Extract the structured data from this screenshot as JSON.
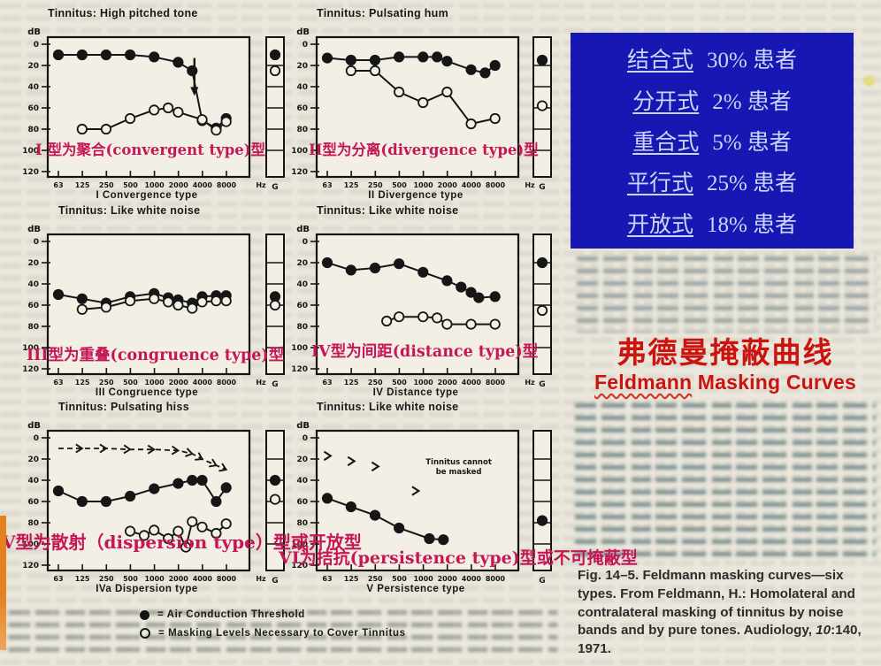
{
  "page_bg": "#ebe7dc",
  "accent_colors": {
    "annotation_red": "#c51755",
    "heading_red": "#cb1310",
    "info_box_blue": "#1717b3",
    "info_box_text": "#ccd4f8"
  },
  "info_box": {
    "items": [
      {
        "term": "结合式",
        "value": "30% 患者"
      },
      {
        "term": "分开式",
        "value": "2% 患者"
      },
      {
        "term": "重合式",
        "value": "5% 患者"
      },
      {
        "term": "平行式",
        "value": "25% 患者"
      },
      {
        "term": "开放式",
        "value": "18% 患者"
      }
    ]
  },
  "heading": {
    "zh": "弗德曼掩蔽曲线",
    "en_underlined": "Feldmann",
    "en_rest": " Masking Curves"
  },
  "caption": {
    "prefix": "Fig. 14–5.",
    "body": " Feldmann masking curves—six types. From Feldmann, H.: Homolateral and contralateral masking of tinnitus by noise bands and by pure tones. Audiology, ",
    "volume": "10",
    "tail": ":140, 1971."
  },
  "legend": {
    "items": [
      {
        "marker": "filled",
        "label": "= Air Conduction Threshold"
      },
      {
        "marker": "open",
        "label": "= Masking Levels Necessary to Cover Tinnitus"
      }
    ]
  },
  "chart_data": [
    {
      "type": "line",
      "title": "Tinnitus: High pitched tone",
      "xlabel": "I Convergence type",
      "annotation": "Ⅰ 型为聚合(convergent type)型",
      "ylabel": "dB",
      "ylim": [
        0,
        120
      ],
      "y_ticks": [
        0,
        20,
        40,
        60,
        80,
        100,
        120
      ],
      "x_ticks": [
        "63",
        "125",
        "250",
        "500",
        "1000",
        "2000",
        "4000",
        "8000"
      ],
      "x_unit": "Hz",
      "series": [
        {
          "name": "Air Conduction Threshold",
          "marker": "filled",
          "points": [
            [
              63,
              10
            ],
            [
              125,
              10
            ],
            [
              250,
              10
            ],
            [
              500,
              10
            ],
            [
              1000,
              12
            ],
            [
              2000,
              17
            ],
            [
              3000,
              25
            ],
            [
              4000,
              72
            ],
            [
              6000,
              79
            ],
            [
              8000,
              70
            ]
          ]
        },
        {
          "name": "Masking Level",
          "marker": "open",
          "points": [
            [
              125,
              80
            ],
            [
              250,
              80
            ],
            [
              500,
              70
            ],
            [
              1000,
              62
            ],
            [
              1500,
              60
            ],
            [
              2000,
              64
            ],
            [
              4000,
              71
            ],
            [
              6000,
              81
            ],
            [
              8000,
              73
            ]
          ]
        }
      ],
      "arrow": {
        "x": 3200,
        "from": 13,
        "to": 42
      },
      "sidebar": {
        "label": "G",
        "air": 10,
        "masking": 25
      }
    },
    {
      "type": "line",
      "title": "Tinnitus: Pulsating hum",
      "xlabel": "II Divergence type",
      "annotation": "II型为分离(divergence type)型",
      "ylabel": "dB",
      "ylim": [
        0,
        120
      ],
      "y_ticks": [
        0,
        20,
        40,
        60,
        80,
        100,
        120
      ],
      "x_ticks": [
        "63",
        "125",
        "250",
        "500",
        "1000",
        "2000",
        "4000",
        "8000"
      ],
      "x_unit": "Hz",
      "series": [
        {
          "name": "Air Conduction Threshold",
          "marker": "filled",
          "points": [
            [
              63,
              13
            ],
            [
              125,
              15
            ],
            [
              250,
              15
            ],
            [
              500,
              12
            ],
            [
              1000,
              12
            ],
            [
              1500,
              12
            ],
            [
              2000,
              16
            ],
            [
              4000,
              24
            ],
            [
              6000,
              27
            ],
            [
              8000,
              20
            ]
          ]
        },
        {
          "name": "Masking Level",
          "marker": "open",
          "points": [
            [
              125,
              25
            ],
            [
              250,
              25
            ],
            [
              500,
              45
            ],
            [
              1000,
              55
            ],
            [
              2000,
              45
            ],
            [
              4000,
              75
            ],
            [
              8000,
              70
            ]
          ]
        }
      ],
      "sidebar": {
        "label": "G",
        "air": 15,
        "masking": 58
      }
    },
    {
      "type": "line",
      "title": "Tinnitus: Like white noise",
      "xlabel": "III Congruence type",
      "annotation": "III型为重叠(congruence type)型",
      "ylabel": "dB",
      "ylim": [
        0,
        120
      ],
      "y_ticks": [
        0,
        20,
        40,
        60,
        80,
        100,
        120
      ],
      "x_ticks": [
        "63",
        "125",
        "250",
        "500",
        "1000",
        "2000",
        "4000",
        "8000"
      ],
      "x_unit": "Hz",
      "series": [
        {
          "name": "Air Conduction Threshold",
          "marker": "filled",
          "points": [
            [
              63,
              50
            ],
            [
              125,
              54
            ],
            [
              250,
              58
            ],
            [
              500,
              52
            ],
            [
              1000,
              49
            ],
            [
              1500,
              53
            ],
            [
              2000,
              55
            ],
            [
              3000,
              58
            ],
            [
              4000,
              52
            ],
            [
              6000,
              51
            ],
            [
              8000,
              51
            ]
          ]
        },
        {
          "name": "Masking Level",
          "marker": "open",
          "points": [
            [
              125,
              64
            ],
            [
              250,
              62
            ],
            [
              500,
              56
            ],
            [
              1000,
              54
            ],
            [
              1500,
              57
            ],
            [
              2000,
              60
            ],
            [
              3000,
              63
            ],
            [
              4000,
              57
            ],
            [
              6000,
              56
            ],
            [
              8000,
              56
            ]
          ]
        }
      ],
      "sidebar": {
        "label": "G",
        "air": 52,
        "masking": 60
      }
    },
    {
      "type": "line",
      "title": "Tinnitus: Like white noise",
      "xlabel": "IV Distance type",
      "annotation": "IV型为间距(distance type)型",
      "ylabel": "dB",
      "ylim": [
        0,
        120
      ],
      "y_ticks": [
        0,
        20,
        40,
        60,
        80,
        100,
        120
      ],
      "x_ticks": [
        "63",
        "125",
        "250",
        "500",
        "1000",
        "2000",
        "4000",
        "8000"
      ],
      "x_unit": "Hz",
      "series": [
        {
          "name": "Air Conduction Threshold",
          "marker": "filled",
          "points": [
            [
              63,
              20
            ],
            [
              125,
              27
            ],
            [
              250,
              25
            ],
            [
              500,
              21
            ],
            [
              1000,
              29
            ],
            [
              2000,
              37
            ],
            [
              3000,
              43
            ],
            [
              4000,
              48
            ],
            [
              5000,
              53
            ],
            [
              8000,
              52
            ]
          ]
        },
        {
          "name": "Masking Level",
          "marker": "open",
          "points": [
            [
              350,
              75
            ],
            [
              500,
              71
            ],
            [
              1000,
              71
            ],
            [
              1500,
              72
            ],
            [
              2000,
              78
            ],
            [
              4000,
              78
            ],
            [
              8000,
              78
            ]
          ]
        }
      ],
      "sidebar": {
        "label": "G",
        "air": 20,
        "masking": 65
      }
    },
    {
      "type": "line",
      "title": "Tinnitus: Pulsating hiss",
      "xlabel": "IVa Dispersion type",
      "annotation": "V型为散射（dispersion type）型或开放型",
      "ylabel": "dB",
      "ylim": [
        0,
        120
      ],
      "y_ticks": [
        0,
        20,
        40,
        60,
        80,
        100,
        120
      ],
      "x_ticks": [
        "63",
        "125",
        "250",
        "500",
        "1000",
        "2000",
        "4000",
        "8000"
      ],
      "x_unit": "Hz",
      "series": [
        {
          "name": "Air Conduction Threshold",
          "marker": "filled",
          "points": [
            [
              63,
              50
            ],
            [
              125,
              60
            ],
            [
              250,
              60
            ],
            [
              500,
              55
            ],
            [
              1000,
              48
            ],
            [
              2000,
              43
            ],
            [
              3000,
              40
            ],
            [
              4000,
              40
            ],
            [
              6000,
              60
            ],
            [
              8000,
              47
            ]
          ]
        },
        {
          "name": "Masking Level",
          "marker": "open",
          "points": [
            [
              500,
              88
            ],
            [
              750,
              92
            ],
            [
              1000,
              87
            ],
            [
              1500,
              95
            ],
            [
              2000,
              88
            ],
            [
              2500,
              103
            ],
            [
              3000,
              79
            ],
            [
              4000,
              84
            ],
            [
              6000,
              90
            ],
            [
              8000,
              81
            ]
          ]
        }
      ],
      "chevron_line": [
        [
          63,
          10
        ],
        [
          125,
          10
        ],
        [
          250,
          10
        ],
        [
          500,
          11
        ],
        [
          1000,
          11
        ],
        [
          2000,
          12
        ],
        [
          3000,
          15
        ],
        [
          4000,
          20
        ],
        [
          6000,
          26
        ],
        [
          8000,
          30
        ]
      ],
      "sidebar": {
        "label": "G",
        "air": 40,
        "masking": 58
      }
    },
    {
      "type": "line",
      "title": "Tinnitus: Like white noise",
      "xlabel": "V Persistence type",
      "annotation": "VI为拮抗(persistence type)型或不可掩蔽型",
      "ylabel": "dB",
      "ylim": [
        0,
        120
      ],
      "y_ticks": [
        0,
        20,
        40,
        60,
        80,
        100,
        120
      ],
      "x_ticks": [
        "63",
        "125",
        "250",
        "500",
        "1000",
        "2000",
        "4000",
        "8000"
      ],
      "x_unit": "",
      "series": [
        {
          "name": "Air Conduction Threshold",
          "marker": "filled",
          "points": [
            [
              63,
              57
            ],
            [
              125,
              65
            ],
            [
              250,
              73
            ],
            [
              500,
              85
            ],
            [
              1200,
              95
            ],
            [
              1800,
              96
            ]
          ]
        }
      ],
      "chevrons": [
        [
          63,
          17
        ],
        [
          125,
          22
        ],
        [
          250,
          27
        ],
        [
          800,
          50
        ]
      ],
      "note": "Tinnitus cannot|be masked",
      "note_at": [
        2800,
        25
      ],
      "sidebar": {
        "label": "G",
        "air": 78
      }
    }
  ]
}
